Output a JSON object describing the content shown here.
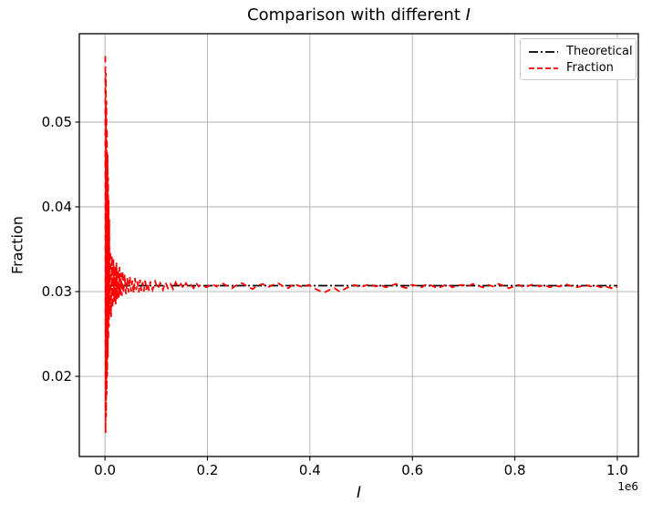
{
  "figure": {
    "title_prefix": "Comparison with different ",
    "title_var": "I"
  },
  "legend": {
    "items": [
      {
        "label": "Theoretical",
        "color": "#000000",
        "dash": "dashdot"
      },
      {
        "label": "Fraction",
        "color": "#ff0000",
        "dash": "dashed"
      }
    ]
  },
  "chart_data": {
    "type": "line",
    "title": "Comparison with different I",
    "xlabel": "I",
    "ylabel": "Fraction",
    "x_offset_label": "1e6",
    "xlim": [
      -50000,
      1041000
    ],
    "ylim": [
      0.01054,
      0.06043
    ],
    "xticks": [
      0,
      200000,
      400000,
      600000,
      800000,
      1000000
    ],
    "xtick_labels": [
      "0.0",
      "0.2",
      "0.4",
      "0.6",
      "0.8",
      "1.0"
    ],
    "yticks": [
      0.02,
      0.03,
      0.04,
      0.05
    ],
    "ytick_labels": [
      "0.02",
      "0.03",
      "0.04",
      "0.05"
    ],
    "grid": true,
    "grid_color": "#b0b0b0",
    "legend_position": "upper right",
    "theoretical_value": 0.0307,
    "series": [
      {
        "name": "Theoretical",
        "color": "#000000",
        "linestyle": "dashdot",
        "points": [
          [
            0,
            0.0307
          ],
          [
            1000000,
            0.0307
          ]
        ]
      },
      {
        "name": "Fraction",
        "color": "#ff0000",
        "linestyle": "dashed",
        "points": [
          [
            700,
            0.0578
          ],
          [
            1200,
            0.0133
          ],
          [
            1800,
            0.0558
          ],
          [
            2300,
            0.0152
          ],
          [
            2900,
            0.0525
          ],
          [
            3400,
            0.0178
          ],
          [
            4000,
            0.0492
          ],
          [
            4500,
            0.02
          ],
          [
            5100,
            0.0462
          ],
          [
            5600,
            0.0222
          ],
          [
            6200,
            0.0435
          ],
          [
            6700,
            0.0243
          ],
          [
            7300,
            0.0408
          ],
          [
            7800,
            0.0258
          ],
          [
            8400,
            0.0385
          ],
          [
            9000,
            0.0272
          ],
          [
            10500,
            0.0348
          ],
          [
            12000,
            0.027
          ],
          [
            13500,
            0.0342
          ],
          [
            15000,
            0.0281
          ],
          [
            16500,
            0.0338
          ],
          [
            18000,
            0.0288
          ],
          [
            19500,
            0.033
          ],
          [
            21000,
            0.0285
          ],
          [
            22500,
            0.0334
          ],
          [
            24000,
            0.0291
          ],
          [
            25500,
            0.0326
          ],
          [
            27000,
            0.0293
          ],
          [
            28500,
            0.0329
          ],
          [
            30000,
            0.0296
          ],
          [
            31500,
            0.0322
          ],
          [
            33000,
            0.0295
          ],
          [
            34500,
            0.0324
          ],
          [
            36000,
            0.0298
          ],
          [
            38500,
            0.032
          ],
          [
            41000,
            0.0297
          ],
          [
            43500,
            0.0316
          ],
          [
            46000,
            0.0299
          ],
          [
            48500,
            0.0318
          ],
          [
            51000,
            0.03
          ],
          [
            53500,
            0.0313
          ],
          [
            56000,
            0.0298
          ],
          [
            58500,
            0.0316
          ],
          [
            61000,
            0.0302
          ],
          [
            63500,
            0.0312
          ],
          [
            66000,
            0.0299
          ],
          [
            68500,
            0.0314
          ],
          [
            71000,
            0.0301
          ],
          [
            73500,
            0.0311
          ],
          [
            76000,
            0.03
          ],
          [
            78500,
            0.0313
          ],
          [
            81000,
            0.0302
          ],
          [
            83500,
            0.031
          ],
          [
            86000,
            0.0301
          ],
          [
            88500,
            0.0312
          ],
          [
            93000,
            0.0302
          ],
          [
            98000,
            0.0312
          ],
          [
            103000,
            0.0303
          ],
          [
            108000,
            0.031
          ],
          [
            113000,
            0.0302
          ],
          [
            118000,
            0.0311
          ],
          [
            123000,
            0.0304
          ],
          [
            128000,
            0.0309
          ],
          [
            133000,
            0.0303
          ],
          [
            138000,
            0.0311
          ],
          [
            143000,
            0.0305
          ],
          [
            148000,
            0.0309
          ],
          [
            153000,
            0.0304
          ],
          [
            158000,
            0.031
          ],
          [
            163000,
            0.0305
          ],
          [
            168000,
            0.0308
          ],
          [
            173000,
            0.0304
          ],
          [
            178000,
            0.031
          ],
          [
            183000,
            0.0306
          ],
          [
            188000,
            0.0308
          ],
          [
            198000,
            0.0305
          ],
          [
            208000,
            0.0309
          ],
          [
            218000,
            0.0306
          ],
          [
            228000,
            0.031
          ],
          [
            238000,
            0.0307
          ],
          [
            248000,
            0.0304
          ],
          [
            258000,
            0.0308
          ],
          [
            268000,
            0.031
          ],
          [
            278000,
            0.0306
          ],
          [
            288000,
            0.0303
          ],
          [
            298000,
            0.0307
          ],
          [
            308000,
            0.0309
          ],
          [
            318000,
            0.0305
          ],
          [
            328000,
            0.0308
          ],
          [
            338000,
            0.031
          ],
          [
            348000,
            0.0306
          ],
          [
            358000,
            0.0304
          ],
          [
            368000,
            0.0309
          ],
          [
            378000,
            0.0307
          ],
          [
            388000,
            0.0305
          ],
          [
            398000,
            0.0308
          ],
          [
            408000,
            0.0304
          ],
          [
            418000,
            0.0301
          ],
          [
            428000,
            0.0299
          ],
          [
            438000,
            0.0302
          ],
          [
            448000,
            0.0304
          ],
          [
            458000,
            0.03
          ],
          [
            468000,
            0.0303
          ],
          [
            478000,
            0.0306
          ],
          [
            488000,
            0.0308
          ],
          [
            498000,
            0.0305
          ],
          [
            508000,
            0.0307
          ],
          [
            518000,
            0.0309
          ],
          [
            528000,
            0.0306
          ],
          [
            538000,
            0.0308
          ],
          [
            548000,
            0.0305
          ],
          [
            558000,
            0.0307
          ],
          [
            568000,
            0.0309
          ],
          [
            578000,
            0.0306
          ],
          [
            588000,
            0.0304
          ],
          [
            598000,
            0.0308
          ],
          [
            608000,
            0.0307
          ],
          [
            618000,
            0.0305
          ],
          [
            628000,
            0.0309
          ],
          [
            638000,
            0.0307
          ],
          [
            648000,
            0.0304
          ],
          [
            658000,
            0.0306
          ],
          [
            668000,
            0.0309
          ],
          [
            678000,
            0.0305
          ],
          [
            688000,
            0.0307
          ],
          [
            698000,
            0.0308
          ],
          [
            708000,
            0.0306
          ],
          [
            718000,
            0.0309
          ],
          [
            728000,
            0.0307
          ],
          [
            738000,
            0.0305
          ],
          [
            748000,
            0.0308
          ],
          [
            758000,
            0.0306
          ],
          [
            768000,
            0.0309
          ],
          [
            778000,
            0.0307
          ],
          [
            788000,
            0.0304
          ],
          [
            798000,
            0.0306
          ],
          [
            808000,
            0.0308
          ],
          [
            818000,
            0.0305
          ],
          [
            828000,
            0.0307
          ],
          [
            838000,
            0.0309
          ],
          [
            848000,
            0.0306
          ],
          [
            858000,
            0.0308
          ],
          [
            868000,
            0.0305
          ],
          [
            878000,
            0.0307
          ],
          [
            888000,
            0.0306
          ],
          [
            898000,
            0.0309
          ],
          [
            908000,
            0.0307
          ],
          [
            918000,
            0.0305
          ],
          [
            928000,
            0.0306
          ],
          [
            938000,
            0.0308
          ],
          [
            948000,
            0.0306
          ],
          [
            958000,
            0.0307
          ],
          [
            968000,
            0.0305
          ],
          [
            978000,
            0.0306
          ],
          [
            988000,
            0.0304
          ],
          [
            998000,
            0.0306
          ],
          [
            1000000,
            0.0305
          ]
        ]
      }
    ]
  }
}
